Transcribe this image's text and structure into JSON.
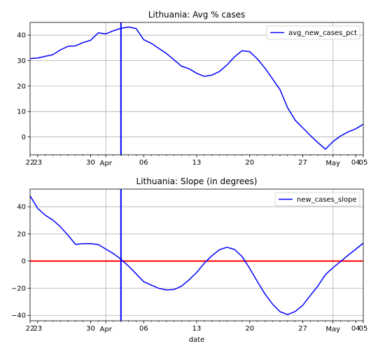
{
  "chart_data": [
    {
      "type": "line",
      "title": "Lithuania: Avg % cases",
      "xlabel": "",
      "ylabel": "",
      "x_range": [
        "2020-03-22",
        "2020-05-05"
      ],
      "ylim": [
        -7,
        45
      ],
      "yticks": [
        0,
        10,
        20,
        30,
        40
      ],
      "xticks_major": [
        {
          "date": "2020-04-01",
          "label": "Apr"
        },
        {
          "date": "2020-05-01",
          "label": "May"
        }
      ],
      "xticks_minor": [
        {
          "date": "2020-03-22",
          "label": "22"
        },
        {
          "date": "2020-03-23",
          "label": "23"
        },
        {
          "date": "2020-03-30",
          "label": "30"
        },
        {
          "date": "2020-04-06",
          "label": "06"
        },
        {
          "date": "2020-04-13",
          "label": "13"
        },
        {
          "date": "2020-04-20",
          "label": "20"
        },
        {
          "date": "2020-04-27",
          "label": "27"
        },
        {
          "date": "2020-05-04",
          "label": "04"
        },
        {
          "date": "2020-05-05",
          "label": "05"
        }
      ],
      "grid": true,
      "legend_position": "top-right",
      "vline": {
        "date": "2020-04-03",
        "color": "#0000ff"
      },
      "hline": null,
      "series": [
        {
          "name": "avg_new_cases_pct",
          "color": "#0000ff",
          "points": [
            [
              "2020-03-22",
              30.8
            ],
            [
              "2020-03-23",
              31.0
            ],
            [
              "2020-03-24",
              31.7
            ],
            [
              "2020-03-25",
              32.3
            ],
            [
              "2020-03-26",
              34.2
            ],
            [
              "2020-03-27",
              35.6
            ],
            [
              "2020-03-28",
              35.8
            ],
            [
              "2020-03-29",
              37.1
            ],
            [
              "2020-03-30",
              38.0
            ],
            [
              "2020-03-31",
              40.9
            ],
            [
              "2020-04-01",
              40.5
            ],
            [
              "2020-04-02",
              41.7
            ],
            [
              "2020-04-03",
              42.7
            ],
            [
              "2020-04-04",
              43.2
            ],
            [
              "2020-04-05",
              42.6
            ],
            [
              "2020-04-06",
              38.2
            ],
            [
              "2020-04-07",
              36.8
            ],
            [
              "2020-04-08",
              34.8
            ],
            [
              "2020-04-09",
              32.8
            ],
            [
              "2020-04-10",
              30.3
            ],
            [
              "2020-04-11",
              27.8
            ],
            [
              "2020-04-12",
              26.8
            ],
            [
              "2020-04-13",
              25.0
            ],
            [
              "2020-04-14",
              23.8
            ],
            [
              "2020-04-15",
              24.3
            ],
            [
              "2020-04-16",
              25.7
            ],
            [
              "2020-04-17",
              28.3
            ],
            [
              "2020-04-18",
              31.5
            ],
            [
              "2020-04-19",
              33.9
            ],
            [
              "2020-04-20",
              33.5
            ],
            [
              "2020-04-21",
              30.7
            ],
            [
              "2020-04-22",
              27.1
            ],
            [
              "2020-04-23",
              22.9
            ],
            [
              "2020-04-24",
              18.6
            ],
            [
              "2020-04-25",
              11.5
            ],
            [
              "2020-04-26",
              6.6
            ],
            [
              "2020-04-27",
              3.6
            ],
            [
              "2020-04-28",
              0.6
            ],
            [
              "2020-04-29",
              -2.2
            ],
            [
              "2020-04-30",
              -4.8
            ],
            [
              "2020-05-01",
              -1.8
            ],
            [
              "2020-05-02",
              0.4
            ],
            [
              "2020-05-03",
              2.0
            ],
            [
              "2020-05-04",
              3.2
            ],
            [
              "2020-05-05",
              5.0
            ]
          ]
        }
      ]
    },
    {
      "type": "line",
      "title": "Lithuania: Slope (in degrees)",
      "xlabel": "date",
      "ylabel": "",
      "x_range": [
        "2020-03-22",
        "2020-05-05"
      ],
      "ylim": [
        -44,
        53
      ],
      "yticks": [
        -40,
        -20,
        0,
        20,
        40
      ],
      "xticks_major": [
        {
          "date": "2020-04-01",
          "label": "Apr"
        },
        {
          "date": "2020-05-01",
          "label": "May"
        }
      ],
      "xticks_minor": [
        {
          "date": "2020-03-22",
          "label": "22"
        },
        {
          "date": "2020-03-23",
          "label": "23"
        },
        {
          "date": "2020-03-30",
          "label": "30"
        },
        {
          "date": "2020-04-06",
          "label": "06"
        },
        {
          "date": "2020-04-13",
          "label": "13"
        },
        {
          "date": "2020-04-20",
          "label": "20"
        },
        {
          "date": "2020-04-27",
          "label": "27"
        },
        {
          "date": "2020-05-04",
          "label": "04"
        },
        {
          "date": "2020-05-05",
          "label": "05"
        }
      ],
      "grid": true,
      "legend_position": "top-right",
      "vline": {
        "date": "2020-04-03",
        "color": "#0000ff"
      },
      "hline": {
        "y": 0,
        "color": "#ff0000"
      },
      "series": [
        {
          "name": "new_cases_slope",
          "color": "#0000ff",
          "points": [
            [
              "2020-03-22",
              48.0
            ],
            [
              "2020-03-23",
              38.8
            ],
            [
              "2020-03-24",
              33.8
            ],
            [
              "2020-03-25",
              30.2
            ],
            [
              "2020-03-26",
              25.3
            ],
            [
              "2020-03-27",
              19.0
            ],
            [
              "2020-03-28",
              12.3
            ],
            [
              "2020-03-29",
              12.8
            ],
            [
              "2020-03-30",
              12.8
            ],
            [
              "2020-03-31",
              12.2
            ],
            [
              "2020-04-01",
              8.8
            ],
            [
              "2020-04-02",
              5.5
            ],
            [
              "2020-04-03",
              1.3
            ],
            [
              "2020-04-04",
              -3.7
            ],
            [
              "2020-04-05",
              -9.4
            ],
            [
              "2020-04-06",
              -15.2
            ],
            [
              "2020-04-07",
              -17.7
            ],
            [
              "2020-04-08",
              -20.1
            ],
            [
              "2020-04-09",
              -21.3
            ],
            [
              "2020-04-10",
              -21.0
            ],
            [
              "2020-04-11",
              -18.5
            ],
            [
              "2020-04-12",
              -13.8
            ],
            [
              "2020-04-13",
              -8.4
            ],
            [
              "2020-04-14",
              -1.6
            ],
            [
              "2020-04-15",
              3.9
            ],
            [
              "2020-04-16",
              8.3
            ],
            [
              "2020-04-17",
              10.2
            ],
            [
              "2020-04-18",
              8.5
            ],
            [
              "2020-04-19",
              3.3
            ],
            [
              "2020-04-20",
              -5.4
            ],
            [
              "2020-04-21",
              -15.0
            ],
            [
              "2020-04-22",
              -24.1
            ],
            [
              "2020-04-23",
              -31.6
            ],
            [
              "2020-04-24",
              -37.3
            ],
            [
              "2020-04-25",
              -39.4
            ],
            [
              "2020-04-26",
              -37.2
            ],
            [
              "2020-04-27",
              -32.6
            ],
            [
              "2020-04-28",
              -25.4
            ],
            [
              "2020-04-29",
              -18.4
            ],
            [
              "2020-04-30",
              -10.0
            ],
            [
              "2020-05-01",
              -4.9
            ],
            [
              "2020-05-02",
              -0.3
            ],
            [
              "2020-05-03",
              4.3
            ],
            [
              "2020-05-04",
              8.7
            ],
            [
              "2020-05-05",
              13.2
            ]
          ]
        }
      ]
    }
  ]
}
